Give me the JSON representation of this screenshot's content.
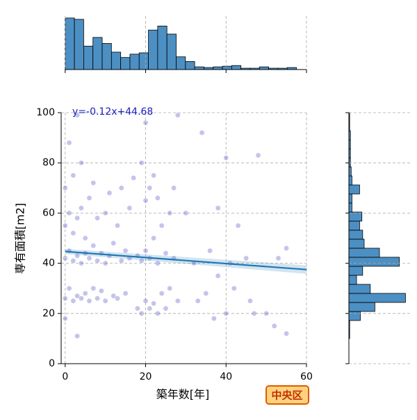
{
  "chart_data": [
    {
      "type": "scatter",
      "x_label": "築年数[年]",
      "y_label": "専有面積[m2]",
      "annotation": "y=-0.12x+44.68",
      "badge": "中央区",
      "color": "#2a2ab8",
      "fit_color": "#1f77b4",
      "xlim": [
        -1,
        60
      ],
      "ylim": [
        0,
        100
      ],
      "xticks": [
        0,
        20,
        40,
        60
      ],
      "yticks": [
        0,
        20,
        40,
        60,
        80,
        100
      ],
      "grid": true,
      "x": [
        0,
        0,
        0,
        0,
        0,
        1,
        1,
        1,
        1,
        2,
        2,
        2,
        2,
        3,
        3,
        3,
        3,
        3,
        4,
        4,
        4,
        4,
        5,
        5,
        5,
        6,
        6,
        6,
        7,
        7,
        7,
        8,
        8,
        8,
        9,
        9,
        10,
        10,
        10,
        11,
        11,
        12,
        12,
        13,
        13,
        14,
        14,
        15,
        15,
        16,
        16,
        17,
        18,
        18,
        19,
        19,
        19,
        20,
        20,
        20,
        20,
        21,
        21,
        21,
        22,
        22,
        22,
        23,
        23,
        23,
        24,
        24,
        25,
        25,
        26,
        26,
        27,
        27,
        28,
        28,
        30,
        32,
        33,
        34,
        35,
        36,
        37,
        38,
        38,
        40,
        40,
        41,
        42,
        43,
        45,
        46,
        47,
        48,
        50,
        52,
        53,
        55,
        55
      ],
      "y": [
        26,
        42,
        55,
        70,
        18,
        30,
        45,
        60,
        88,
        25,
        41,
        52,
        75,
        27,
        43,
        58,
        99,
        11,
        26,
        40,
        62,
        80,
        28,
        44,
        50,
        25,
        42,
        66,
        30,
        47,
        72,
        26,
        41,
        58,
        29,
        44,
        25,
        40,
        60,
        43,
        68,
        27,
        48,
        26,
        55,
        41,
        70,
        28,
        45,
        42,
        62,
        74,
        22,
        43,
        20,
        41,
        80,
        25,
        45,
        65,
        96,
        22,
        42,
        70,
        24,
        50,
        75,
        20,
        40,
        66,
        28,
        55,
        22,
        44,
        30,
        60,
        42,
        70,
        25,
        99,
        60,
        40,
        25,
        92,
        28,
        45,
        18,
        35,
        62,
        20,
        82,
        40,
        30,
        55,
        42,
        25,
        20,
        83,
        20,
        15,
        42,
        46,
        12
      ],
      "fit": {
        "x": [
          0,
          60
        ],
        "y": [
          44.68,
          37.48
        ],
        "ci_lower": [
          43.7,
          35.8
        ],
        "ci_upper": [
          45.7,
          39.2
        ]
      }
    },
    {
      "type": "histogram",
      "orientation": "vertical",
      "color": "#4c8fc3",
      "bins": [
        0,
        2.3,
        4.6,
        6.9,
        9.2,
        11.5,
        13.8,
        16.1,
        18.4,
        20.7,
        23,
        25.3,
        27.6,
        29.9,
        32.2,
        34.5,
        36.8,
        39.1,
        41.4,
        43.7,
        46,
        48.3,
        50.6,
        52.9,
        55.2,
        57.5
      ],
      "values": [
        77,
        75,
        35,
        48,
        39,
        26,
        18,
        23,
        25,
        59,
        65,
        53,
        19,
        12,
        4,
        3,
        4,
        5,
        6,
        2,
        2,
        4,
        2,
        2,
        3
      ],
      "ylim": [
        0,
        80
      ]
    },
    {
      "type": "histogram",
      "orientation": "horizontal",
      "color": "#4c8fc3",
      "bins": [
        10,
        13.6,
        17.2,
        20.8,
        24.4,
        28,
        31.6,
        35.2,
        38.8,
        42.4,
        46,
        49.6,
        53.2,
        56.8,
        60.4,
        64,
        67.6,
        71.2,
        74.8,
        78.4,
        82,
        85.6,
        89.2,
        92.8,
        96.4,
        100
      ],
      "values": [
        1,
        1,
        15,
        34,
        74,
        28,
        10,
        18,
        66,
        40,
        20,
        18,
        14,
        17,
        4,
        4,
        14,
        4,
        3,
        2,
        2,
        2,
        2,
        1,
        1
      ],
      "xlim": [
        0,
        80
      ]
    }
  ]
}
